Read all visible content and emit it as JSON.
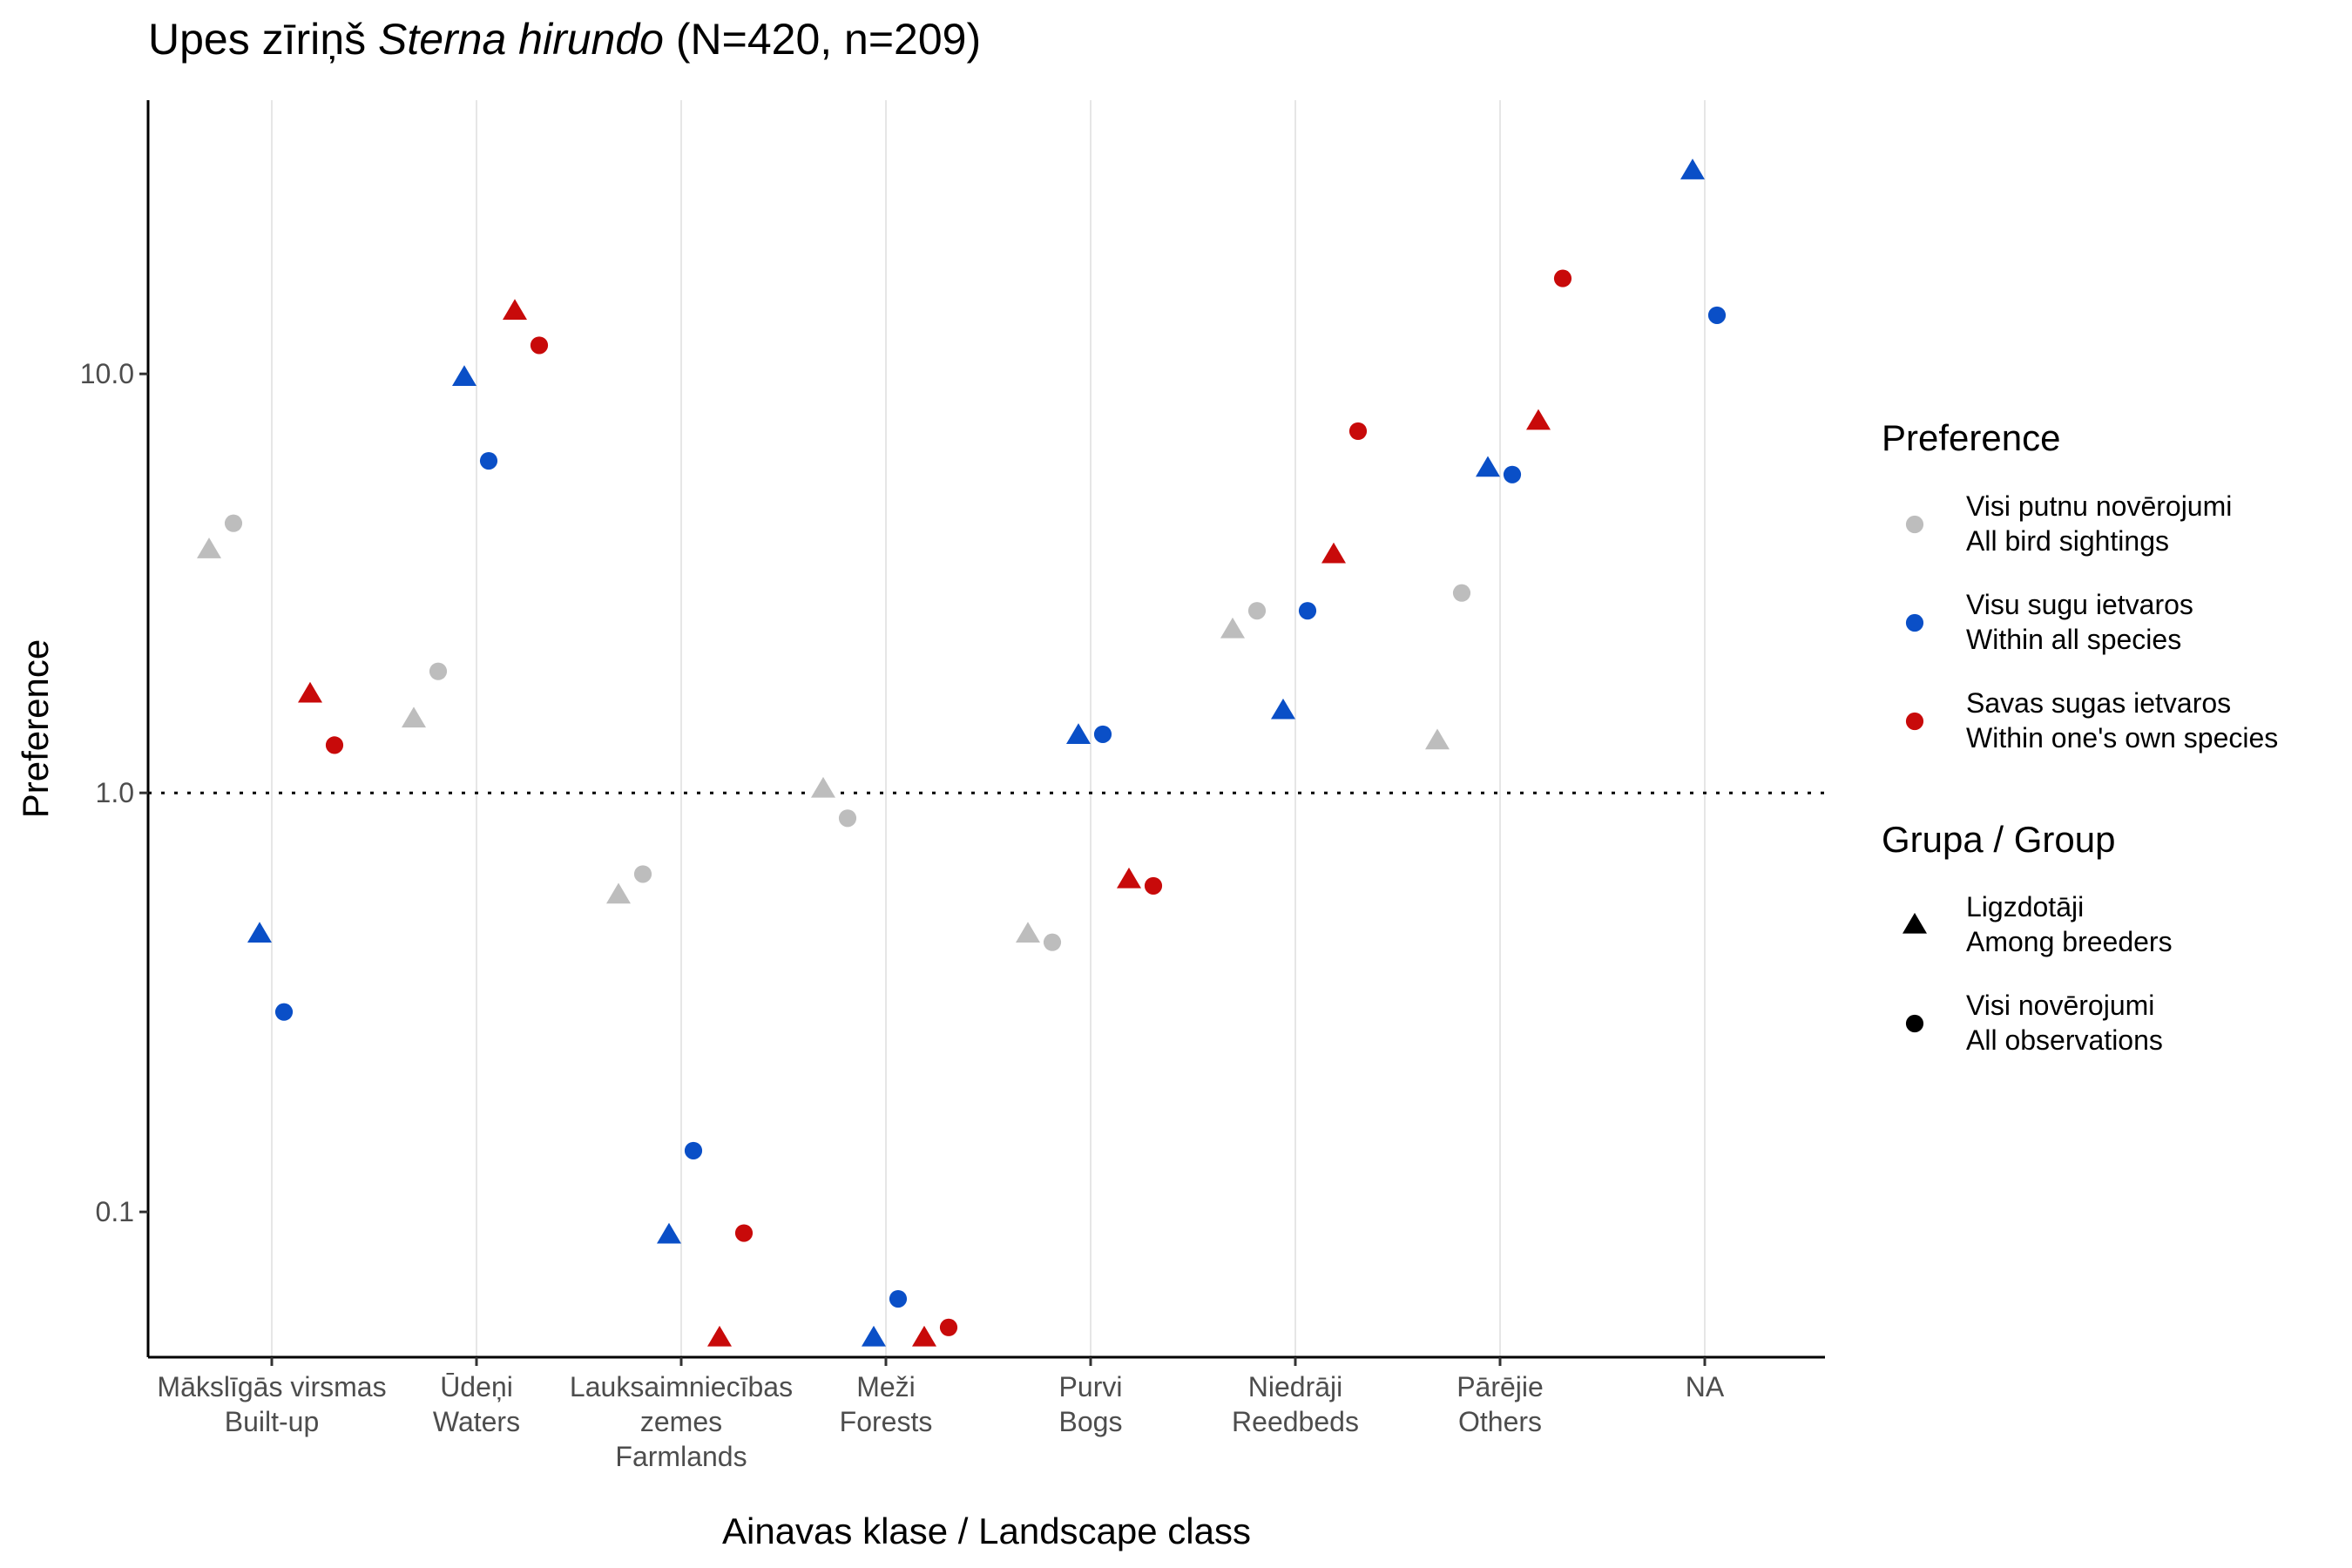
{
  "chart_data": {
    "type": "scatter",
    "title": {
      "prefix": "Upes zīriņš ",
      "italic": "Sterna hirundo",
      "suffix": " (N=420, n=209)"
    },
    "xlabel": "Ainavas klase / Landscape class",
    "ylabel": "Preference",
    "y_scale": "log10",
    "ylim": [
      0.045,
      45
    ],
    "yticks": [
      "0.1",
      "1.0",
      "10.0"
    ],
    "reference_line": 1.0,
    "grid": "vertical major gridlines only",
    "legend_placement": "right",
    "categories": [
      [
        "Mākslīgās virsmas",
        "Built-up"
      ],
      [
        "Ūdeņi",
        "Waters"
      ],
      [
        "Lauksaimniecības",
        "zemes",
        "Farmlands"
      ],
      [
        "Meži",
        "Forests"
      ],
      [
        "Purvi",
        "Bogs"
      ],
      [
        "Niedrāji",
        "Reedbeds"
      ],
      [
        "Pārējie",
        "Others"
      ],
      [
        "NA"
      ]
    ],
    "colors": {
      "all_bird_sightings": "#bdbdbd",
      "within_all_species": "#0a4fc7",
      "within_own_species": "#c80a0a"
    },
    "legend": {
      "preference_title": "Preference",
      "preference_items": [
        {
          "key": "all_bird_sightings",
          "lines": [
            "Visi putnu novērojumi",
            "All bird sightings"
          ]
        },
        {
          "key": "within_all_species",
          "lines": [
            "Visu sugu ietvaros",
            "Within all species"
          ]
        },
        {
          "key": "within_own_species",
          "lines": [
            "Savas sugas ietvaros",
            "Within one's own species"
          ]
        }
      ],
      "group_title": "Grupa / Group",
      "group_items": [
        {
          "shape": "triangle",
          "lines": [
            "Ligzdotāji",
            "Among breeders"
          ]
        },
        {
          "shape": "circle",
          "lines": [
            "Visi novērojumi",
            "All observations"
          ]
        }
      ]
    },
    "series": [
      {
        "preference": "all_bird_sightings",
        "group": "breeders",
        "shape": "triangle",
        "values": [
          3.8,
          1.5,
          0.57,
          1.02,
          0.46,
          2.45,
          1.33,
          null
        ]
      },
      {
        "preference": "all_bird_sightings",
        "group": "all_observations",
        "shape": "circle",
        "values": [
          4.4,
          1.95,
          0.64,
          0.87,
          0.44,
          2.72,
          3.0,
          null
        ]
      },
      {
        "preference": "within_all_species",
        "group": "breeders",
        "shape": "triangle",
        "values": [
          0.46,
          9.8,
          0.088,
          0.05,
          1.37,
          1.57,
          5.95,
          30.5
        ]
      },
      {
        "preference": "within_all_species",
        "group": "all_observations",
        "shape": "circle",
        "values": [
          0.3,
          6.2,
          0.14,
          0.062,
          1.38,
          2.72,
          5.75,
          13.8
        ]
      },
      {
        "preference": "within_own_species",
        "group": "breeders",
        "shape": "triangle",
        "values": [
          1.72,
          14.1,
          0.05,
          0.05,
          0.62,
          3.7,
          7.7,
          null
        ]
      },
      {
        "preference": "within_own_species",
        "group": "all_observations",
        "shape": "circle",
        "values": [
          1.3,
          11.7,
          0.089,
          0.053,
          0.6,
          7.3,
          16.9,
          null
        ]
      }
    ]
  }
}
